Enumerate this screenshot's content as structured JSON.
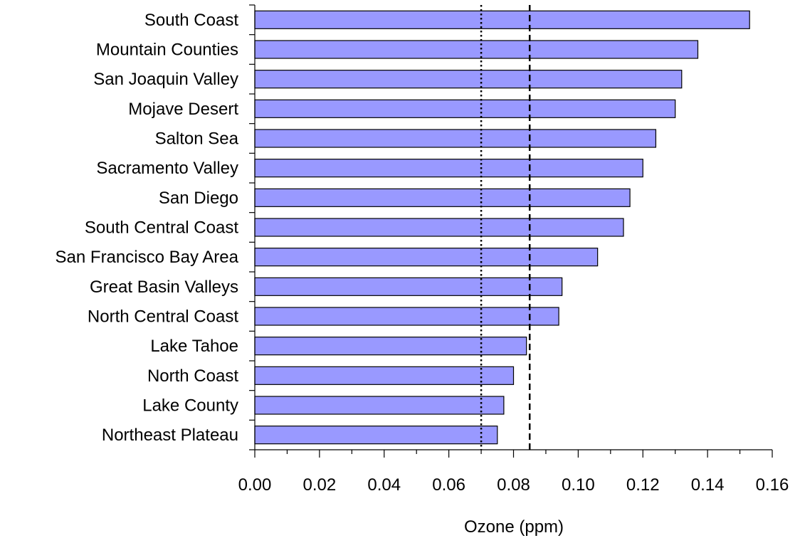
{
  "chart_data": {
    "type": "bar",
    "orientation": "horizontal",
    "categories": [
      "South Coast",
      "Mountain Counties",
      "San Joaquin Valley",
      "Mojave Desert",
      "Salton Sea",
      "Sacramento Valley",
      "San Diego",
      "South Central Coast",
      "San Francisco Bay Area",
      "Great Basin Valleys",
      "North Central Coast",
      "Lake Tahoe",
      "North Coast",
      "Lake County",
      "Northeast Plateau"
    ],
    "values": [
      0.153,
      0.137,
      0.132,
      0.13,
      0.124,
      0.12,
      0.116,
      0.114,
      0.106,
      0.095,
      0.094,
      0.084,
      0.08,
      0.077,
      0.075
    ],
    "title": "",
    "xlabel": "Ozone (ppm)",
    "ylabel": "",
    "xlim": [
      0,
      0.16
    ],
    "xticks": [
      "0.00",
      "0.02",
      "0.04",
      "0.06",
      "0.08",
      "0.10",
      "0.12",
      "0.14",
      "0.16"
    ],
    "reference_lines": [
      {
        "value": 0.07,
        "style": "dotted"
      },
      {
        "value": 0.085,
        "style": "dashed"
      }
    ],
    "grid": false,
    "bar_color": "#9999ff",
    "bar_edge_color": "#000000"
  }
}
